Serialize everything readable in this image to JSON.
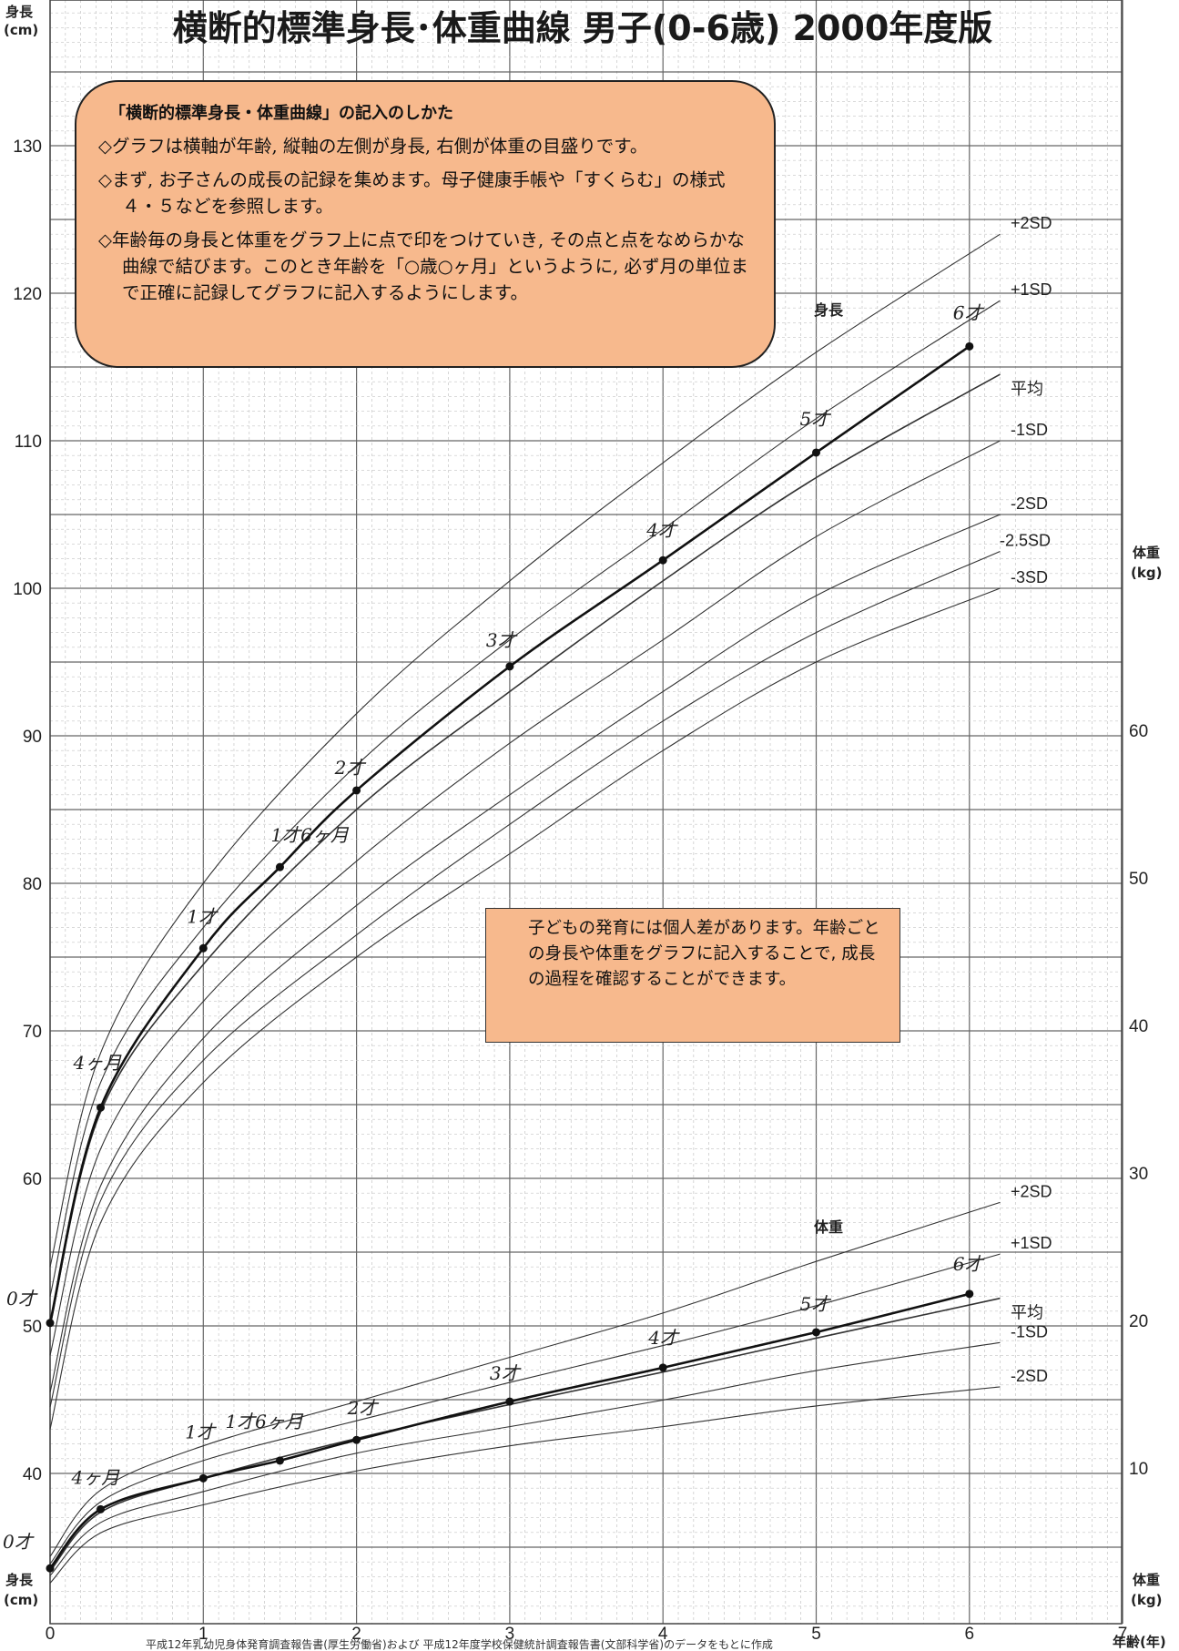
{
  "chart_data": {
    "type": "line",
    "title": "横断的標準身長･体重曲線 男子(0-6歳) 2000年度版",
    "x_axis": {
      "label": "年齢(年)",
      "ticks": [
        0,
        1,
        2,
        3,
        4,
        5,
        6,
        7
      ],
      "range": [
        0,
        7
      ]
    },
    "height_axis": {
      "label_top": "身長",
      "unit_top": "(cm)",
      "label_bottom": "身長",
      "unit_bottom": "(cm)",
      "ticks": [
        40,
        50,
        60,
        70,
        80,
        90,
        100,
        110,
        120,
        130
      ],
      "range": [
        31,
        140
      ]
    },
    "weight_axis": {
      "label_mid": "体重",
      "unit_mid": "(kg)",
      "label_bottom": "体重",
      "unit_bottom": "(kg)",
      "ticks": [
        10,
        20,
        30,
        40,
        50,
        60
      ],
      "range": [
        0,
        60
      ]
    },
    "grid": true,
    "height_series_label": "身長",
    "weight_series_label": "体重",
    "height_reference_curves": [
      {
        "name": "+2SD",
        "x": [
          0,
          0.33,
          1,
          2,
          3,
          4,
          5,
          6.2
        ],
        "values": [
          54,
          68.5,
          80,
          91.5,
          100.5,
          108.5,
          116,
          124
        ]
      },
      {
        "name": "+1SD",
        "x": [
          0,
          0.33,
          1,
          2,
          3,
          4,
          5,
          6.2
        ],
        "values": [
          52,
          66.5,
          77,
          88,
          96.5,
          104,
          111.5,
          119.5
        ]
      },
      {
        "name": "平均",
        "x": [
          0,
          0.33,
          1,
          2,
          3,
          4,
          5,
          6.2
        ],
        "values": [
          50,
          64.5,
          74.5,
          85,
          93,
          100.5,
          107.5,
          114.5
        ]
      },
      {
        "name": "-1SD",
        "x": [
          0,
          0.33,
          1,
          2,
          3,
          4,
          5,
          6.2
        ],
        "values": [
          48,
          62,
          72,
          81.5,
          89.5,
          96.5,
          103.5,
          110
        ]
      },
      {
        "name": "-2SD",
        "x": [
          0,
          0.33,
          1,
          2,
          3,
          4,
          5,
          6.2
        ],
        "values": [
          45.5,
          59.5,
          69.5,
          78.5,
          86,
          93,
          99.5,
          105
        ]
      },
      {
        "name": "-2.5SD",
        "x": [
          0,
          0.33,
          1,
          2,
          3,
          4,
          5,
          6.2
        ],
        "values": [
          44.5,
          58.5,
          68,
          76.5,
          84,
          91,
          97,
          102.5
        ]
      },
      {
        "name": "-3SD",
        "x": [
          0,
          0.33,
          1,
          2,
          3,
          4,
          5,
          6.2
        ],
        "values": [
          43,
          57,
          66.5,
          75,
          82,
          89,
          95,
          100
        ]
      }
    ],
    "weight_reference_curves": [
      {
        "name": "+2SD",
        "x": [
          0,
          0.33,
          1,
          2,
          3,
          4,
          5,
          6.2
        ],
        "values": [
          4,
          8.5,
          11.5,
          14.5,
          17.5,
          20.5,
          24,
          28
        ]
      },
      {
        "name": "+1SD",
        "x": [
          0,
          0.33,
          1,
          2,
          3,
          4,
          5,
          6.2
        ],
        "values": [
          3.5,
          7.7,
          10.5,
          13.2,
          15.8,
          18.3,
          21,
          24.5
        ]
      },
      {
        "name": "平均",
        "x": [
          0,
          0.33,
          1,
          2,
          3,
          4,
          5,
          6.2
        ],
        "values": [
          3,
          7,
          9.3,
          12,
          14.3,
          16.5,
          18.8,
          21.5
        ]
      },
      {
        "name": "-1SD",
        "x": [
          0,
          0.33,
          1,
          2,
          3,
          4,
          5,
          6.2
        ],
        "values": [
          2.7,
          6.3,
          8.4,
          11,
          12.8,
          14.6,
          16.6,
          18.5
        ]
      },
      {
        "name": "-2SD",
        "x": [
          0,
          0.33,
          1,
          2,
          3,
          4,
          5,
          6.2
        ],
        "values": [
          2.2,
          5.6,
          7.5,
          9.8,
          11.5,
          12.8,
          14.2,
          15.5
        ]
      }
    ],
    "height_points": [
      {
        "x": 0,
        "y": 50.2,
        "label": "0才"
      },
      {
        "x": 0.33,
        "y": 64.8,
        "label": "4ヶ月"
      },
      {
        "x": 1,
        "y": 75.6,
        "label": "1才"
      },
      {
        "x": 1.5,
        "y": 81.1,
        "label": "1才6ヶ月"
      },
      {
        "x": 2,
        "y": 86.3,
        "label": "2才"
      },
      {
        "x": 3,
        "y": 94.7,
        "label": "3才"
      },
      {
        "x": 4,
        "y": 101.9,
        "label": "4才"
      },
      {
        "x": 5,
        "y": 109.2,
        "label": "5才"
      },
      {
        "x": 6,
        "y": 116.4,
        "label": "6才"
      }
    ],
    "weight_points": [
      {
        "x": 0,
        "y": 3.2,
        "label": "0才"
      },
      {
        "x": 0.33,
        "y": 7.2,
        "label": "4ヶ月"
      },
      {
        "x": 1,
        "y": 9.3,
        "label": "1才"
      },
      {
        "x": 1.5,
        "y": 10.5,
        "label": "1才6ヶ月"
      },
      {
        "x": 2,
        "y": 11.9,
        "label": "2才"
      },
      {
        "x": 3,
        "y": 14.5,
        "label": "3才"
      },
      {
        "x": 4,
        "y": 16.8,
        "label": "4才"
      },
      {
        "x": 5,
        "y": 19.2,
        "label": "5才"
      },
      {
        "x": 6,
        "y": 21.8,
        "label": "6才"
      }
    ],
    "source": "平成12年乳幼児身体発育調査報告書(厚生労働省)および 平成12年度学校保健統計調査報告書(文部科学省)のデータをもとに作成"
  },
  "howto": {
    "title": "「横断的標準身長・体重曲線」の記入のしかた",
    "items": [
      "◇グラフは横軸が年齢, 縦軸の左側が身長, 右側が体重の目盛りです。",
      "◇まず, お子さんの成長の記録を集めます。母子健康手帳や「すくらむ」の様式４・５などを参照します。",
      "◇年齢毎の身長と体重をグラフ上に点で印をつけていき, その点と点をなめらかな曲線で結びます。このとき年齢を「○歳○ヶ月」というように, 必ず月の単位まで正確に記録してグラフに記入するようにします。"
    ]
  },
  "note": {
    "text": "子どもの発育には個人差があります。年齢ごとの身長や体重をグラフに記入することで, 成長の過程を確認することができます。"
  }
}
